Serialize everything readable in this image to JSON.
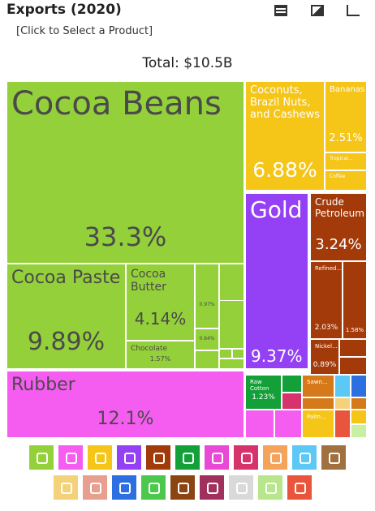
{
  "chart_data": {
    "type": "treemap",
    "title": "Exports (2020)",
    "subtitle": "[Click to Select a Product]",
    "total_label": "Total: $10.5B",
    "categories": [
      "Cocoa Beans",
      "Cocoa Paste",
      "Cocoa Butter",
      "Chocolate",
      null,
      null,
      "Rubber",
      "Coconuts, Brazil Nuts, and Cashews",
      "Bananas",
      "Tropical...",
      "Coffee",
      "Gold",
      "Crude Petroleum",
      "Refined...",
      null,
      "Nickel...",
      "Raw Cotton",
      "Sawn...",
      "Palm..."
    ],
    "values": [
      33.3,
      9.89,
      4.14,
      1.57,
      0.97,
      0.64,
      12.1,
      6.88,
      2.51,
      null,
      null,
      9.37,
      3.24,
      2.03,
      1.58,
      0.89,
      1.23,
      null,
      null
    ],
    "value_labels": [
      "33.3%",
      "9.89%",
      "4.14%",
      "1.57%",
      "0.97%",
      "0.64%",
      "12.1%",
      "6.88%",
      "2.51%",
      null,
      null,
      "9.37%",
      "3.24%",
      "2.03%",
      "1.58%",
      "0.89%",
      "1.23%",
      null,
      null
    ],
    "colors": [
      "#94d03a",
      "#94d03a",
      "#94d03a",
      "#94d03a",
      "#94d03a",
      "#94d03a",
      "#f55cf0",
      "#f5c518",
      "#f5c518",
      "#f5c518",
      "#f5c518",
      "#9441f5",
      "#a33a0a",
      "#a33a0a",
      "#a33a0a",
      "#a33a0a",
      "#13a039",
      "#d6791a",
      "#f5c518"
    ]
  }
}
